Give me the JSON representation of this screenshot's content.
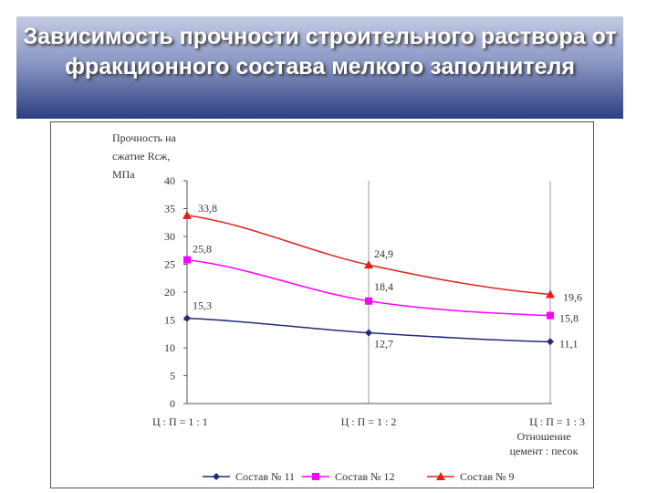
{
  "title": "Зависимость прочности строительного раствора от фракционного состава мелкого заполнителя",
  "chart_data": {
    "type": "line",
    "ylabel": [
      "Прочность на",
      "сжатие Rсж,",
      "МПа"
    ],
    "xlabel": [
      "Отношение",
      "цемент : песок"
    ],
    "categories": [
      "Ц : П = 1 : 1",
      "Ц : П = 1 : 2",
      "Ц : П = 1 : 3"
    ],
    "ylim": [
      0,
      40
    ],
    "yticks": [
      0,
      5,
      10,
      15,
      20,
      25,
      30,
      35,
      40
    ],
    "grid": "vertical",
    "legend_position": "bottom",
    "series": [
      {
        "name": "Состав № 11",
        "values": [
          15.3,
          12.7,
          11.1
        ],
        "labels": [
          "15,3",
          "12,7",
          "11,1"
        ],
        "color": "#1f2a7a",
        "marker": "diamond"
      },
      {
        "name": "Состав № 12",
        "values": [
          25.8,
          18.4,
          15.8
        ],
        "labels": [
          "25,8",
          "18,4",
          "15,8"
        ],
        "color": "#ff00ff",
        "marker": "square"
      },
      {
        "name": "Состав № 9",
        "values": [
          33.8,
          24.9,
          19.6
        ],
        "labels": [
          "33,8",
          "24,9",
          "19,6"
        ],
        "color": "#e0201b",
        "marker": "triangle"
      }
    ]
  }
}
